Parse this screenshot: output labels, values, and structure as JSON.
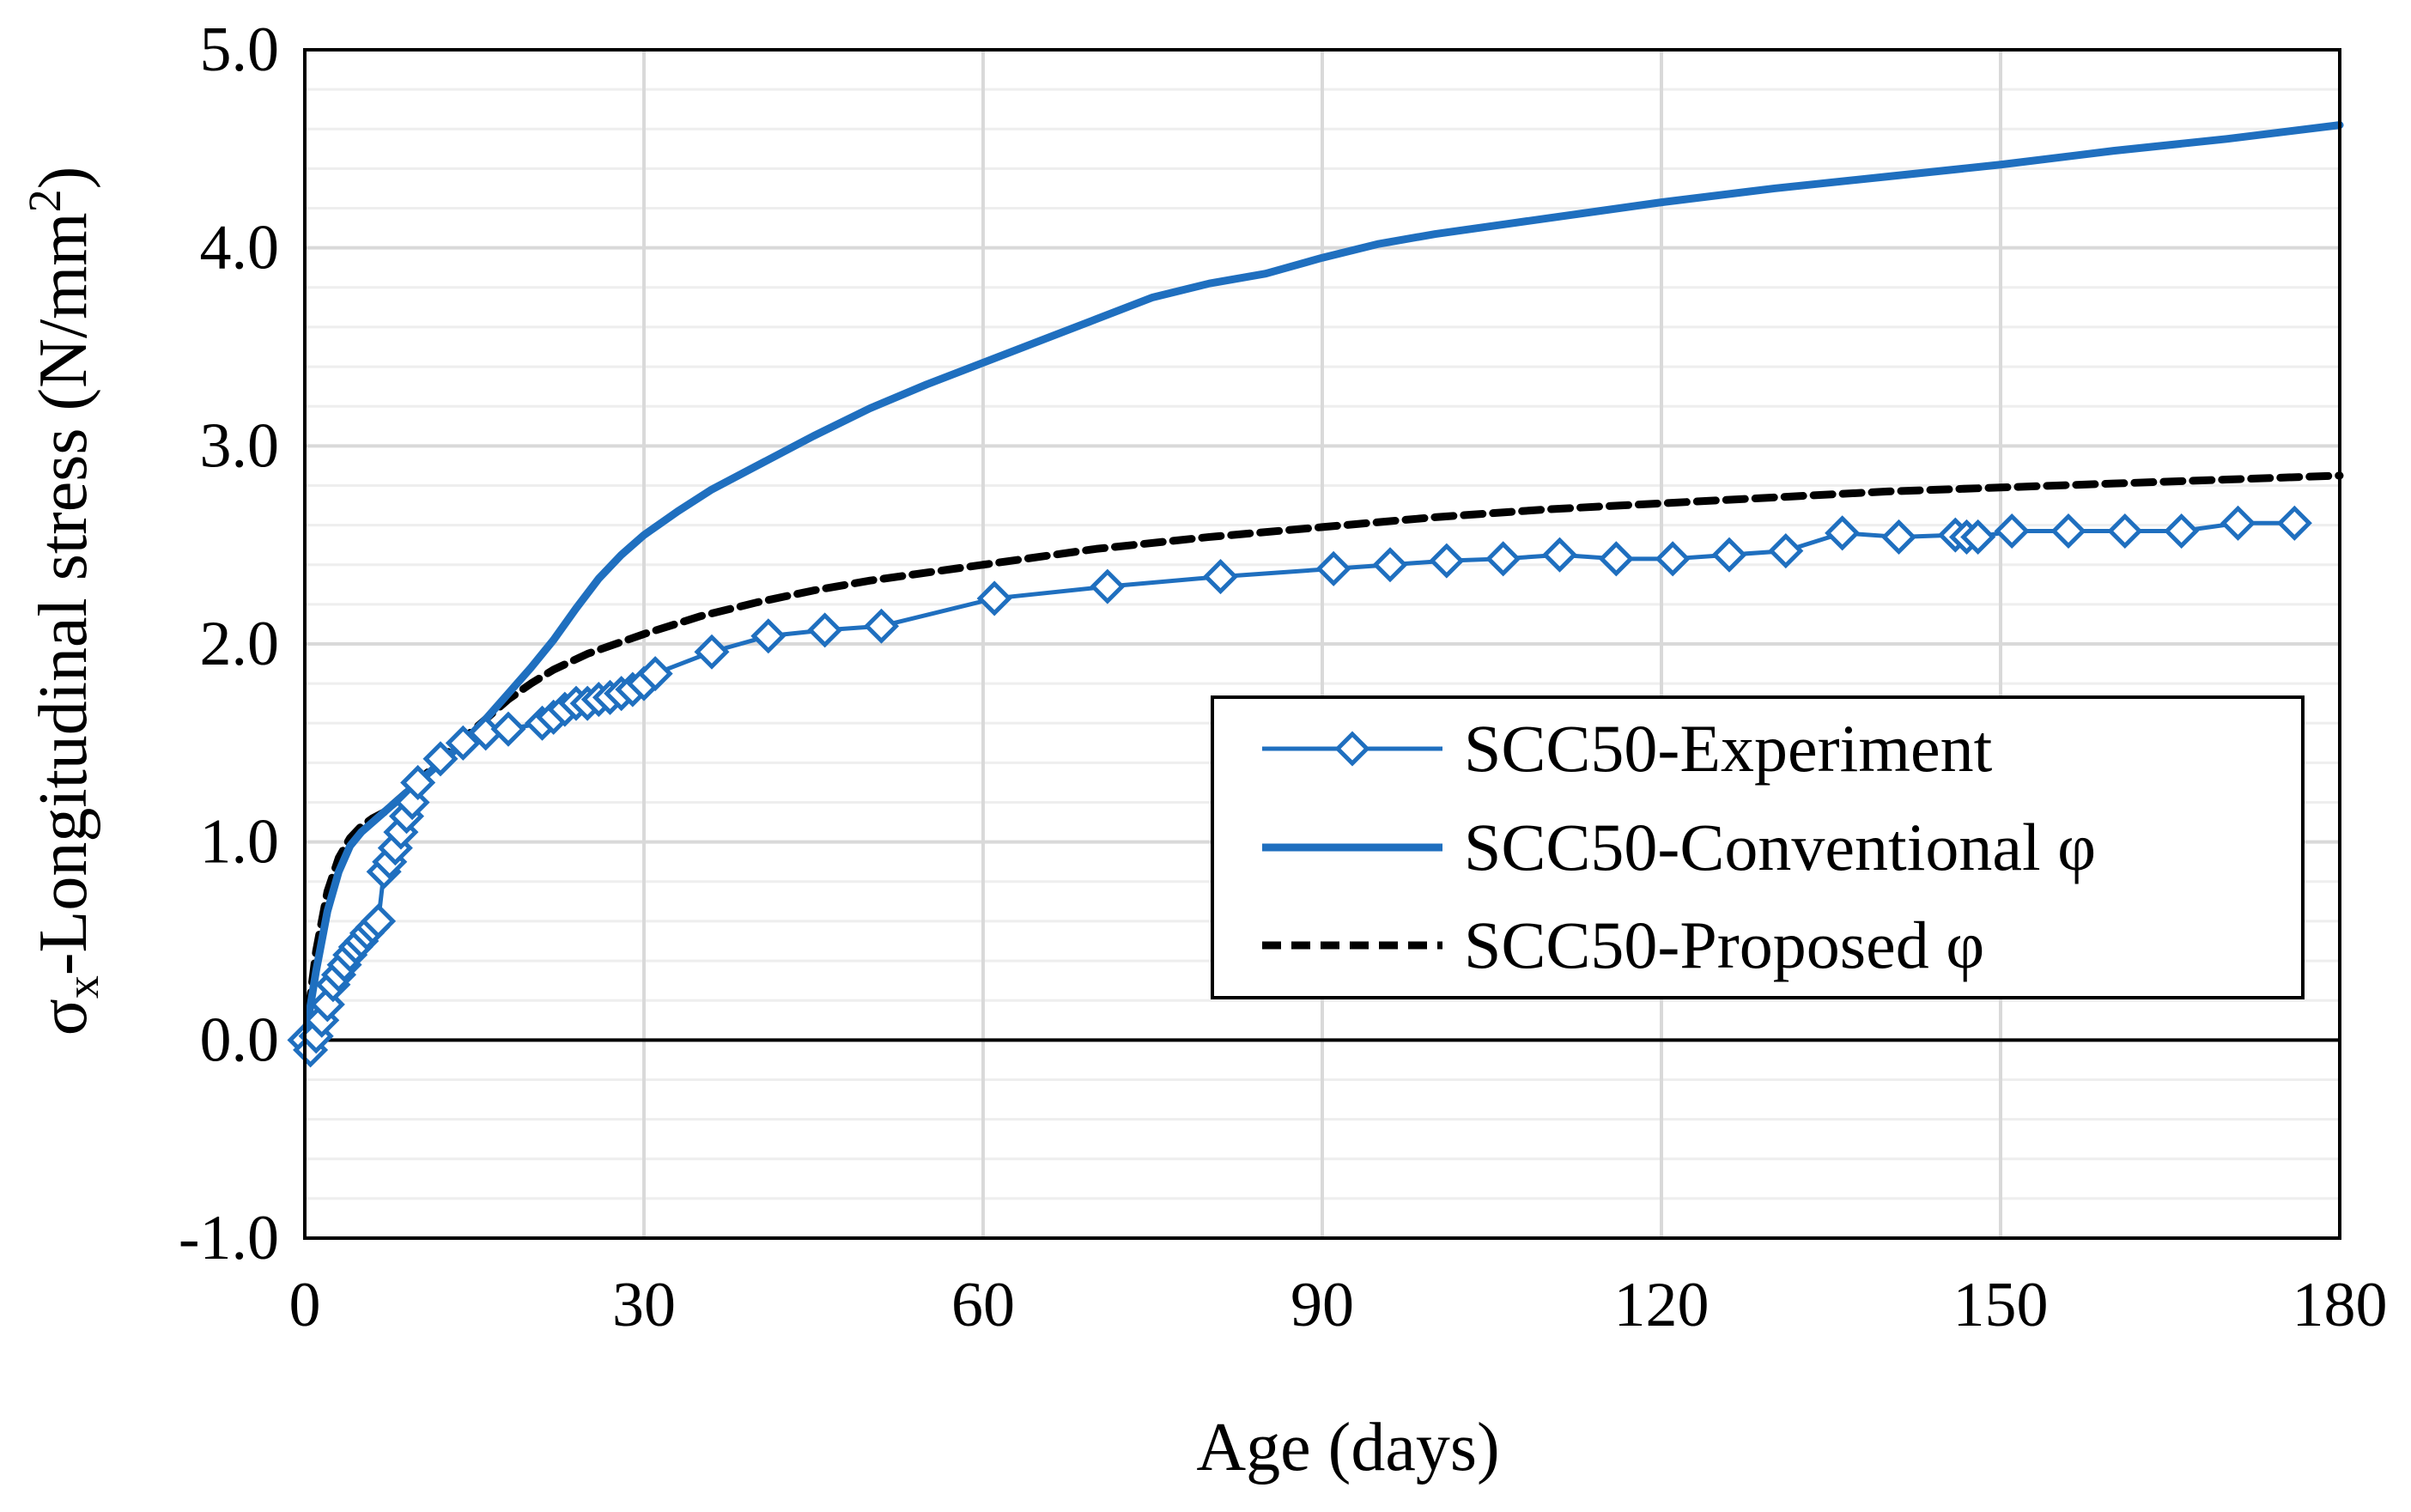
{
  "chart_data": {
    "type": "line",
    "title": "",
    "xlabel": "Age (days)",
    "ylabel": "σ",
    "ylabel_sub": "x",
    "ylabel_rest": "-Longitudinal stress (N/mm",
    "ylabel_sup": "2",
    "ylabel_close": ")",
    "xlim": [
      0,
      180
    ],
    "ylim": [
      -1.0,
      5.0
    ],
    "x_ticks": [
      0,
      30,
      60,
      90,
      120,
      150,
      180
    ],
    "x_tick_labels": [
      "0",
      "30",
      "60",
      "90",
      "120",
      "150",
      "180"
    ],
    "y_ticks": [
      -1.0,
      0.0,
      1.0,
      2.0,
      3.0,
      4.0,
      5.0
    ],
    "y_tick_labels": [
      "-1.0",
      "0.0",
      "1.0",
      "2.0",
      "3.0",
      "4.0",
      "5.0"
    ],
    "grid": true,
    "legend_position": "center-right",
    "colors": {
      "experiment": "#1f6fbf",
      "conventional": "#1f6fbf",
      "proposed": "#000000",
      "grid": "#d9d9d9",
      "axis": "#000000"
    },
    "series": [
      {
        "name": "SCC50-Experiment",
        "style": "line-diamond",
        "x": [
          0,
          0.5,
          1,
          1.5,
          2,
          2.5,
          3,
          3.5,
          4,
          4.5,
          5,
          5.5,
          6,
          6.5,
          7,
          7.5,
          8,
          8.5,
          9,
          9.5,
          10,
          12,
          14,
          16,
          18,
          21,
          22,
          23,
          24,
          25,
          26,
          27,
          28,
          29,
          30,
          31,
          36,
          41,
          46,
          51,
          61,
          71,
          81,
          91,
          96,
          101,
          106,
          111,
          116,
          121,
          126,
          131,
          136,
          141,
          146,
          147,
          148,
          151,
          156,
          161,
          166,
          171,
          176
        ],
        "y": [
          0.0,
          -0.05,
          0.02,
          0.1,
          0.18,
          0.28,
          0.33,
          0.38,
          0.43,
          0.47,
          0.5,
          0.54,
          0.57,
          0.6,
          0.85,
          0.9,
          0.97,
          1.05,
          1.13,
          1.2,
          1.3,
          1.42,
          1.5,
          1.55,
          1.57,
          1.6,
          1.63,
          1.67,
          1.7,
          1.7,
          1.72,
          1.73,
          1.75,
          1.77,
          1.8,
          1.85,
          1.96,
          2.04,
          2.07,
          2.09,
          2.23,
          2.29,
          2.34,
          2.38,
          2.4,
          2.42,
          2.43,
          2.45,
          2.43,
          2.43,
          2.45,
          2.47,
          2.56,
          2.54,
          2.55,
          2.54,
          2.54,
          2.57,
          2.57,
          2.57,
          2.57,
          2.61,
          2.61
        ]
      },
      {
        "name": "SCC50-Conventional φ",
        "style": "solid",
        "x": [
          0,
          1,
          2,
          3,
          4,
          5,
          6,
          7,
          8,
          10,
          12,
          14,
          16,
          18,
          20,
          22,
          24,
          26,
          28,
          30,
          33,
          36,
          40,
          45,
          50,
          55,
          60,
          65,
          70,
          75,
          80,
          85,
          90,
          95,
          100,
          110,
          120,
          130,
          140,
          150,
          160,
          170,
          180
        ],
        "y": [
          0.0,
          0.35,
          0.65,
          0.85,
          0.98,
          1.05,
          1.1,
          1.15,
          1.2,
          1.3,
          1.4,
          1.5,
          1.62,
          1.75,
          1.88,
          2.02,
          2.18,
          2.33,
          2.45,
          2.55,
          2.67,
          2.78,
          2.9,
          3.05,
          3.19,
          3.31,
          3.42,
          3.53,
          3.64,
          3.75,
          3.82,
          3.87,
          3.95,
          4.02,
          4.07,
          4.15,
          4.23,
          4.3,
          4.36,
          4.42,
          4.49,
          4.55,
          4.62
        ]
      },
      {
        "name": "SCC50-Proposed φ",
        "style": "dashed",
        "x": [
          0,
          1,
          2,
          3,
          4,
          5,
          6,
          7,
          8,
          10,
          12,
          14,
          16,
          18,
          20,
          22,
          25,
          28,
          30,
          35,
          40,
          45,
          50,
          60,
          70,
          80,
          90,
          100,
          110,
          120,
          130,
          140,
          150,
          160,
          170,
          180
        ],
        "y": [
          0.0,
          0.45,
          0.75,
          0.92,
          1.02,
          1.08,
          1.12,
          1.15,
          1.2,
          1.3,
          1.42,
          1.52,
          1.62,
          1.72,
          1.8,
          1.87,
          1.95,
          2.01,
          2.05,
          2.14,
          2.21,
          2.27,
          2.32,
          2.4,
          2.48,
          2.54,
          2.59,
          2.64,
          2.68,
          2.71,
          2.74,
          2.77,
          2.79,
          2.81,
          2.83,
          2.85
        ]
      }
    ]
  }
}
